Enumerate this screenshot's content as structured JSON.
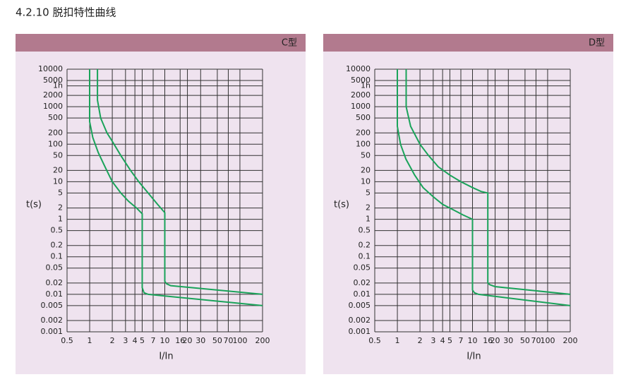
{
  "title": "4.2.10 脱扣特性曲线",
  "chart_data": [
    {
      "type": "line",
      "title": "C型",
      "xlabel": "I/In",
      "ylabel": "t(s)",
      "xlog": true,
      "ylog": true,
      "grid": true,
      "xlim": [
        0.5,
        200
      ],
      "ylim": [
        0.001,
        10000
      ],
      "xticks": [
        0.5,
        1,
        2,
        3,
        4,
        5,
        7,
        10,
        16,
        20,
        30,
        50,
        70,
        100,
        200
      ],
      "yticks": [
        10000,
        5000,
        {
          "value": 3600,
          "label": "1h"
        },
        2000,
        1000,
        500,
        200,
        100,
        50,
        20,
        10,
        5,
        2,
        1,
        0.5,
        0.2,
        0.1,
        0.05,
        0.02,
        0.01,
        0.005,
        0.002,
        0.001
      ],
      "series": [
        {
          "color": "#1aa35a",
          "x": [
            1,
            1,
            1.1,
            1.3,
            1.6,
            2,
            2.6,
            3.3,
            4.2,
            5,
            5,
            5,
            5.3,
            6,
            200
          ],
          "values": [
            10000,
            400,
            150,
            60,
            25,
            10,
            5,
            3,
            2,
            1.4,
            0.025,
            0.015,
            0.011,
            0.01,
            0.005
          ]
        },
        {
          "color": "#1aa35a",
          "x": [
            1.27,
            1.27,
            1.4,
            1.7,
            2,
            2.6,
            3.5,
            4.5,
            6,
            8,
            10,
            10,
            10,
            10.6,
            12,
            200
          ],
          "values": [
            10000,
            1500,
            500,
            200,
            120,
            50,
            20,
            10,
            5,
            2.5,
            1.5,
            0.03,
            0.022,
            0.019,
            0.017,
            0.01
          ]
        }
      ]
    },
    {
      "type": "line",
      "title": "D型",
      "xlabel": "I/In",
      "ylabel": "t(s)",
      "xlog": true,
      "ylog": true,
      "grid": true,
      "xlim": [
        0.5,
        200
      ],
      "ylim": [
        0.001,
        10000
      ],
      "xticks": [
        0.5,
        1,
        2,
        3,
        4,
        5,
        7,
        10,
        16,
        20,
        30,
        50,
        70,
        100,
        200
      ],
      "yticks": [
        10000,
        5000,
        {
          "value": 3600,
          "label": "1h"
        },
        2000,
        1000,
        500,
        200,
        100,
        50,
        20,
        10,
        5,
        2,
        1,
        0.5,
        0.2,
        0.1,
        0.05,
        0.02,
        0.01,
        0.005,
        0.002,
        0.001
      ],
      "series": [
        {
          "color": "#1aa35a",
          "x": [
            1,
            1,
            1.1,
            1.3,
            1.7,
            2.2,
            3,
            4,
            5.5,
            7.5,
            10,
            10,
            10,
            10.6,
            12,
            200
          ],
          "values": [
            10000,
            300,
            100,
            40,
            15,
            7,
            4,
            2.5,
            1.8,
            1.3,
            1,
            0.02,
            0.013,
            0.011,
            0.01,
            0.005
          ]
        },
        {
          "color": "#1aa35a",
          "x": [
            1.31,
            1.31,
            1.5,
            2,
            2.6,
            3.5,
            5,
            7,
            10,
            13,
            16,
            16,
            16,
            17,
            20,
            200
          ],
          "values": [
            10000,
            1000,
            300,
            100,
            50,
            25,
            15,
            10,
            7,
            5.5,
            5,
            0.03,
            0.02,
            0.018,
            0.016,
            0.01
          ]
        }
      ]
    }
  ]
}
